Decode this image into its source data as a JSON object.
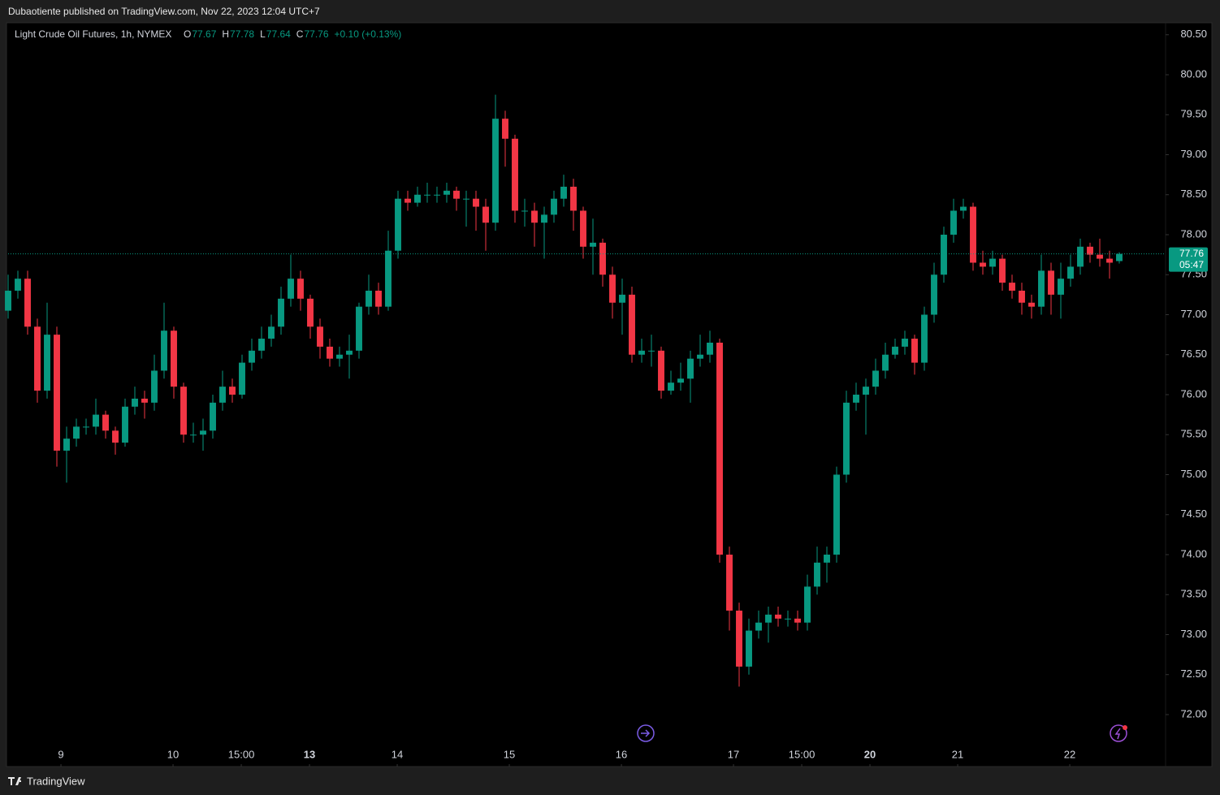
{
  "header": {
    "text": "Dubaotiente published on TradingView.com, Nov 22, 2023 12:04 UTC+7"
  },
  "footer": {
    "brand": "TradingView"
  },
  "chart_data": {
    "type": "candlestick",
    "legend": {
      "symbol": "Light Crude Oil Futures, 1h, NYMEX",
      "open": {
        "label": "O",
        "value": 77.67
      },
      "high": {
        "label": "H",
        "value": 77.78
      },
      "low": {
        "label": "L",
        "value": 77.64
      },
      "close": {
        "label": "C",
        "value": 77.76
      },
      "change": "+0.10 (+0.13%)"
    },
    "last_price": 77.76,
    "countdown": "05:47",
    "up_color": "#089981",
    "down_color": "#f23645",
    "open": [
      77.05,
      77.3,
      77.45,
      76.85,
      76.05,
      76.75,
      75.3,
      75.45,
      75.6,
      75.6,
      75.75,
      75.55,
      75.4,
      75.85,
      75.95,
      75.9,
      76.3,
      76.8,
      76.1,
      75.5,
      75.5,
      75.55,
      75.9,
      76.1,
      76.0,
      76.4,
      76.55,
      76.7,
      76.85,
      77.2,
      77.45,
      77.2,
      76.85,
      76.6,
      76.45,
      76.5,
      76.55,
      77.1,
      77.3,
      77.1,
      77.8,
      78.45,
      78.4,
      78.5,
      78.5,
      78.5,
      78.55,
      78.45,
      78.45,
      78.35,
      78.15,
      79.45,
      79.2,
      78.3,
      78.3,
      78.15,
      78.25,
      78.45,
      78.6,
      78.3,
      77.85,
      77.9,
      77.5,
      77.15,
      77.25,
      76.5,
      76.55,
      76.55,
      76.05,
      76.15,
      76.2,
      76.45,
      76.5,
      76.65,
      74.0,
      73.3,
      72.6,
      73.05,
      73.15,
      73.25,
      73.2,
      73.2,
      73.15,
      73.6,
      73.9,
      74.0,
      75.0,
      75.9,
      76.0,
      76.1,
      76.3,
      76.5,
      76.6,
      76.7,
      76.4,
      77.0,
      77.5,
      78.0,
      78.3,
      78.35,
      77.65,
      77.6,
      77.7,
      77.4,
      77.3,
      77.15,
      77.1,
      77.55,
      77.25,
      77.45,
      77.6,
      77.85,
      77.75,
      77.7,
      77.67
    ],
    "high": [
      77.5,
      77.55,
      77.55,
      76.95,
      77.15,
      76.85,
      75.6,
      75.7,
      75.7,
      75.95,
      75.8,
      75.6,
      75.95,
      76.1,
      76.05,
      76.5,
      77.15,
      76.85,
      76.15,
      75.65,
      75.7,
      76.0,
      76.3,
      76.2,
      76.5,
      76.7,
      76.85,
      77.0,
      77.35,
      77.75,
      77.55,
      77.25,
      76.95,
      76.7,
      76.6,
      76.75,
      77.15,
      77.5,
      77.4,
      78.05,
      78.55,
      78.55,
      78.6,
      78.65,
      78.6,
      78.65,
      78.6,
      78.55,
      78.55,
      78.45,
      79.75,
      79.55,
      79.25,
      78.45,
      78.4,
      78.35,
      78.55,
      78.75,
      78.7,
      78.35,
      78.2,
      77.95,
      77.6,
      77.45,
      77.35,
      76.7,
      76.75,
      76.6,
      76.3,
      76.4,
      76.55,
      76.75,
      76.8,
      76.7,
      74.1,
      73.4,
      73.2,
      73.3,
      73.35,
      73.35,
      73.3,
      73.3,
      73.75,
      74.1,
      74.1,
      75.1,
      76.05,
      76.15,
      76.2,
      76.45,
      76.65,
      76.7,
      76.8,
      76.75,
      77.1,
      77.65,
      78.1,
      78.45,
      78.45,
      78.4,
      77.8,
      77.8,
      77.75,
      77.5,
      77.4,
      77.25,
      77.75,
      77.65,
      77.65,
      77.75,
      77.95,
      77.9,
      77.95,
      77.8,
      77.78
    ],
    "low": [
      76.95,
      77.2,
      76.75,
      75.9,
      75.95,
      75.1,
      74.9,
      75.35,
      75.5,
      75.5,
      75.45,
      75.25,
      75.35,
      75.75,
      75.7,
      75.8,
      76.2,
      75.95,
      75.4,
      75.4,
      75.3,
      75.45,
      75.8,
      75.9,
      75.95,
      76.3,
      76.45,
      76.6,
      76.75,
      77.1,
      77.05,
      76.7,
      76.45,
      76.35,
      76.35,
      76.2,
      76.45,
      77.0,
      77.0,
      77.05,
      77.7,
      78.3,
      78.35,
      78.4,
      78.4,
      78.4,
      78.3,
      78.1,
      78.05,
      77.8,
      78.05,
      78.85,
      78.15,
      78.1,
      77.85,
      77.7,
      78.15,
      78.35,
      78.05,
      77.7,
      77.5,
      77.35,
      76.95,
      76.75,
      76.4,
      76.4,
      76.35,
      75.95,
      76.0,
      76.05,
      75.9,
      76.35,
      76.4,
      73.9,
      73.05,
      72.35,
      72.5,
      72.95,
      72.9,
      73.1,
      73.1,
      73.05,
      73.05,
      73.5,
      73.65,
      73.9,
      74.9,
      75.8,
      75.5,
      76.0,
      76.2,
      76.45,
      76.5,
      76.25,
      76.3,
      76.9,
      77.4,
      77.9,
      78.2,
      77.55,
      77.5,
      77.5,
      77.3,
      77.2,
      77.0,
      76.95,
      77.0,
      77.0,
      76.95,
      77.35,
      77.5,
      77.65,
      77.6,
      77.45,
      77.64
    ],
    "close": [
      77.3,
      77.45,
      76.85,
      76.05,
      76.75,
      75.3,
      75.45,
      75.6,
      75.6,
      75.75,
      75.55,
      75.4,
      75.85,
      75.95,
      75.9,
      76.3,
      76.8,
      76.1,
      75.5,
      75.5,
      75.55,
      75.9,
      76.1,
      76.0,
      76.4,
      76.55,
      76.7,
      76.85,
      77.2,
      77.45,
      77.2,
      76.85,
      76.6,
      76.45,
      76.5,
      76.55,
      77.1,
      77.3,
      77.1,
      77.8,
      78.45,
      78.4,
      78.5,
      78.5,
      78.5,
      78.55,
      78.45,
      78.45,
      78.35,
      78.15,
      79.45,
      79.2,
      78.3,
      78.3,
      78.15,
      78.25,
      78.45,
      78.6,
      78.3,
      77.85,
      77.9,
      77.5,
      77.15,
      77.25,
      76.5,
      76.55,
      76.55,
      76.05,
      76.15,
      76.2,
      76.45,
      76.5,
      76.65,
      74.0,
      73.3,
      72.6,
      73.05,
      73.15,
      73.25,
      73.2,
      73.2,
      73.15,
      73.6,
      73.9,
      74.0,
      75.0,
      75.9,
      76.0,
      76.1,
      76.3,
      76.5,
      76.6,
      76.7,
      76.4,
      77.0,
      77.5,
      78.0,
      78.3,
      78.35,
      77.65,
      77.6,
      77.7,
      77.4,
      77.3,
      77.15,
      77.1,
      77.55,
      77.25,
      77.45,
      77.6,
      77.85,
      77.75,
      77.7,
      77.65,
      77.76
    ],
    "xlim": [
      0,
      118.75
    ],
    "xticks": [
      {
        "value": 5.42,
        "label": "9"
      },
      {
        "value": 16.92,
        "label": "10"
      },
      {
        "value": 23.92,
        "label": "15:00"
      },
      {
        "value": 30.92,
        "label": "13",
        "bold": true
      },
      {
        "value": 39.92,
        "label": "14"
      },
      {
        "value": 51.42,
        "label": "15"
      },
      {
        "value": 62.92,
        "label": "16"
      },
      {
        "value": 74.42,
        "label": "17"
      },
      {
        "value": 81.42,
        "label": "15:00"
      },
      {
        "value": 88.42,
        "label": "20",
        "bold": true
      },
      {
        "value": 97.42,
        "label": "21"
      },
      {
        "value": 108.92,
        "label": "22"
      }
    ],
    "ylim": [
      71.35,
      80.65
    ],
    "yticks": [
      {
        "value": 72,
        "label": "72.00"
      },
      {
        "value": 72.5,
        "label": "72.50"
      },
      {
        "value": 73,
        "label": "73.00"
      },
      {
        "value": 73.5,
        "label": "73.50"
      },
      {
        "value": 74,
        "label": "74.00"
      },
      {
        "value": 74.5,
        "label": "74.50"
      },
      {
        "value": 75,
        "label": "75.00"
      },
      {
        "value": 75.5,
        "label": "75.50"
      },
      {
        "value": 76,
        "label": "76.00"
      },
      {
        "value": 76.5,
        "label": "76.50"
      },
      {
        "value": 77,
        "label": "77.00"
      },
      {
        "value": 77.5,
        "label": "77.50"
      },
      {
        "value": 78,
        "label": "78.00"
      },
      {
        "value": 78.5,
        "label": "78.50"
      },
      {
        "value": 79,
        "label": "79.00"
      },
      {
        "value": 79.5,
        "label": "79.50"
      },
      {
        "value": 80,
        "label": "80.00"
      },
      {
        "value": 80.5,
        "label": "80.50"
      }
    ]
  }
}
